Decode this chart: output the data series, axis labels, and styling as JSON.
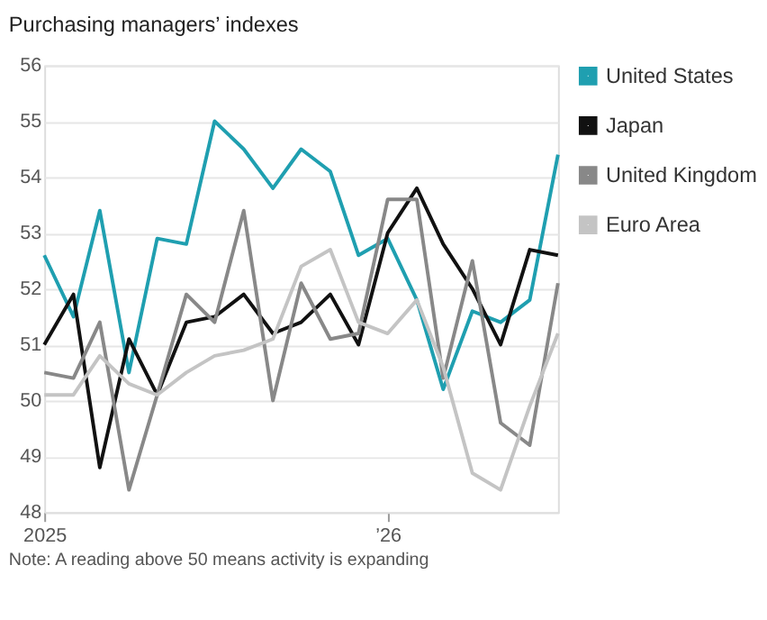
{
  "chart_data": {
    "type": "line",
    "title": "Purchasing managers’ indexes",
    "x": [
      "2025-01",
      "2025-02",
      "2025-03",
      "2025-04",
      "2025-05",
      "2025-06",
      "2025-07",
      "2025-08",
      "2025-09",
      "2025-10",
      "2025-11",
      "2025-12",
      "2026-01",
      "2026-02",
      "2026-03",
      "2026-04",
      "2026-05",
      "2026-06",
      "2026-07"
    ],
    "series": [
      {
        "name": "United States",
        "color": "#1f9fb0",
        "values": [
          52.6,
          51.5,
          53.4,
          50.5,
          52.9,
          52.8,
          55.0,
          54.5,
          53.8,
          54.5,
          54.1,
          52.6,
          52.9,
          51.8,
          50.2,
          51.6,
          51.4,
          51.8,
          54.4
        ]
      },
      {
        "name": "Japan",
        "color": "#111111",
        "values": [
          51.0,
          51.9,
          48.8,
          51.1,
          50.1,
          51.4,
          51.5,
          51.9,
          51.2,
          51.4,
          51.9,
          51.0,
          53.0,
          53.8,
          52.8,
          52.0,
          51.0,
          52.7,
          52.6
        ]
      },
      {
        "name": "United Kingdom",
        "color": "#888888",
        "values": [
          50.5,
          50.4,
          51.4,
          48.4,
          50.1,
          51.9,
          51.4,
          53.4,
          50.0,
          52.1,
          51.1,
          51.2,
          53.6,
          53.6,
          50.4,
          52.5,
          49.6,
          49.2,
          52.1
        ]
      },
      {
        "name": "Euro Area",
        "color": "#c4c4c4",
        "values": [
          50.1,
          50.1,
          50.8,
          50.3,
          50.1,
          50.5,
          50.8,
          50.9,
          51.1,
          52.4,
          52.7,
          51.4,
          51.2,
          51.8,
          50.6,
          48.7,
          48.4,
          49.9,
          51.2
        ]
      }
    ],
    "xlim": [
      "2025-01",
      "2026-07"
    ],
    "xticks": [
      {
        "value": "2025-01",
        "label": "2025"
      },
      {
        "value": "2026-01",
        "label": "’26"
      }
    ],
    "ylim": [
      48,
      56
    ],
    "yticks": [
      48,
      49,
      50,
      51,
      52,
      53,
      54,
      55,
      56
    ],
    "grid": "y",
    "legend": "right",
    "line_style": "solid",
    "marker": "none",
    "annotations": [
      "Note: A reading above 50 means activity is expanding"
    ]
  }
}
